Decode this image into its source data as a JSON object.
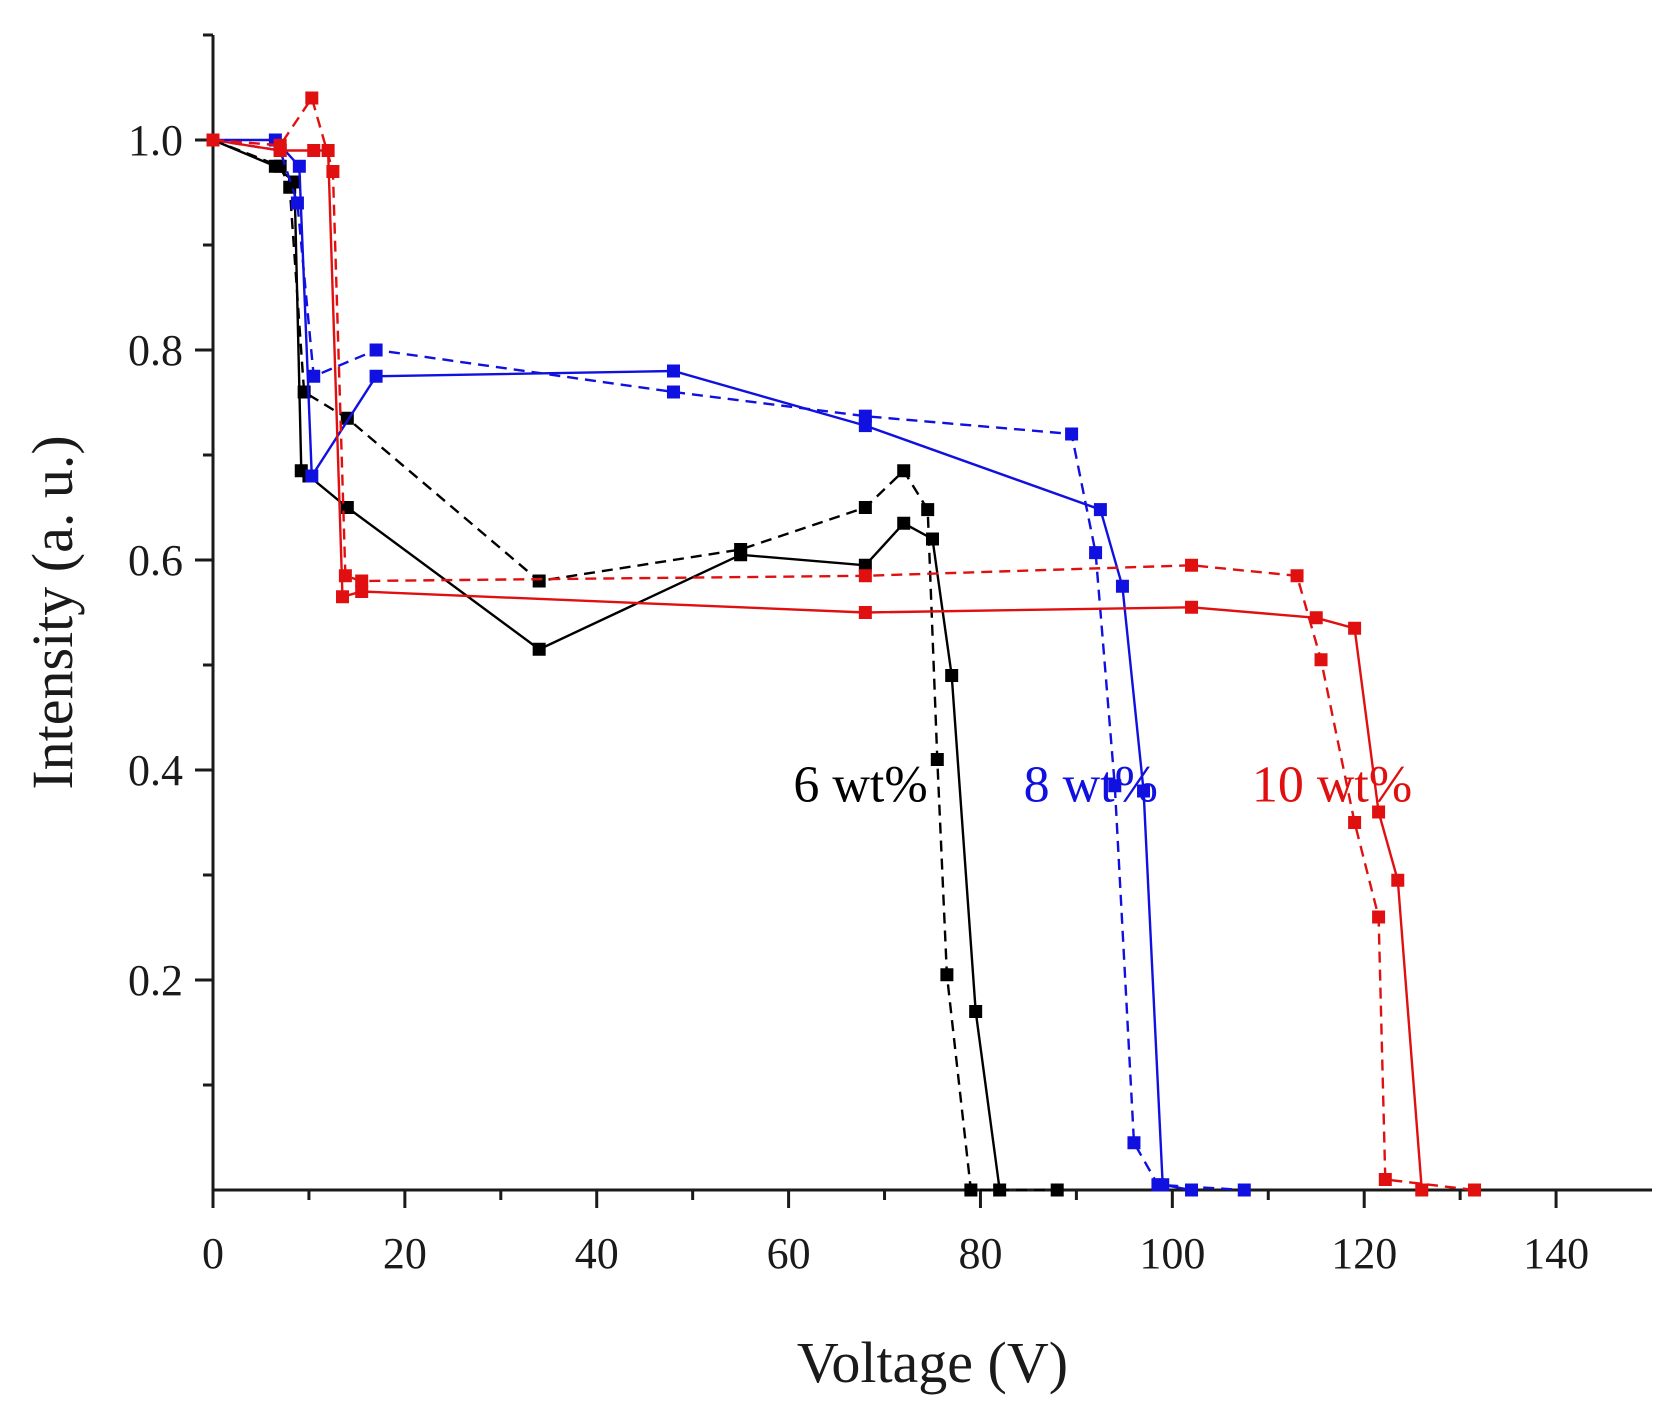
{
  "chart_data": {
    "type": "line",
    "title": "",
    "xlabel": "Voltage (V)",
    "ylabel": "Intensity (a. u.)",
    "xlim": [
      0,
      150
    ],
    "ylim": [
      0,
      1.1
    ],
    "xticks": [
      0,
      20,
      40,
      60,
      80,
      100,
      120,
      140
    ],
    "xtick_labels": [
      "0",
      "20",
      "40",
      "60",
      "80",
      "100",
      "120",
      "140"
    ],
    "yticks": [
      0.2,
      0.4,
      0.6,
      0.8,
      1.0
    ],
    "ytick_labels": [
      "0.2",
      "0.4",
      "0.6",
      "0.8",
      "1.0"
    ],
    "grid": false,
    "legend": "inline labels",
    "series": [
      {
        "name": "6 wt% (solid)",
        "color": "#000000",
        "dash": "solid",
        "x": [
          0,
          6.5,
          8.5,
          9.2,
          10,
          14,
          34,
          55,
          68,
          72,
          75,
          77,
          79.5,
          82
        ],
        "y": [
          1.0,
          0.975,
          0.96,
          0.685,
          0.68,
          0.65,
          0.515,
          0.605,
          0.595,
          0.635,
          0.62,
          0.49,
          0.17,
          0.0
        ]
      },
      {
        "name": "6 wt% (dashed)",
        "color": "#000000",
        "dash": "dashed",
        "x": [
          0,
          7,
          8,
          9.5,
          14,
          34,
          55,
          68,
          72,
          74.5,
          75.5,
          76.5,
          79,
          88
        ],
        "y": [
          1.0,
          0.975,
          0.955,
          0.76,
          0.735,
          0.58,
          0.61,
          0.65,
          0.685,
          0.648,
          0.41,
          0.205,
          0.0,
          0.0
        ]
      },
      {
        "name": "8 wt% (solid)",
        "color": "#1010e0",
        "dash": "solid",
        "x": [
          0,
          6.5,
          9,
          10.3,
          17,
          48,
          68,
          92.5,
          94.8,
          97,
          99,
          102
        ],
        "y": [
          1.0,
          1.0,
          0.975,
          0.68,
          0.775,
          0.78,
          0.728,
          0.648,
          0.575,
          0.38,
          0.005,
          0.0
        ]
      },
      {
        "name": "8 wt% (dashed)",
        "color": "#1010e0",
        "dash": "dashed",
        "x": [
          0,
          7,
          8.8,
          10.5,
          17,
          48,
          68,
          89.5,
          92,
          94,
          96,
          98.5,
          107.5
        ],
        "y": [
          1.0,
          0.99,
          0.94,
          0.775,
          0.8,
          0.76,
          0.737,
          0.72,
          0.607,
          0.385,
          0.045,
          0.005,
          0.0
        ]
      },
      {
        "name": "10 wt% (solid)",
        "color": "#e01010",
        "dash": "solid",
        "x": [
          0,
          7,
          10.5,
          12,
          13.5,
          15.5,
          68,
          102,
          115,
          119,
          121.5,
          123.5,
          126
        ],
        "y": [
          1.0,
          0.99,
          0.99,
          0.99,
          0.565,
          0.57,
          0.55,
          0.555,
          0.545,
          0.535,
          0.36,
          0.295,
          0.0
        ]
      },
      {
        "name": "10 wt% (dashed)",
        "color": "#e01010",
        "dash": "dashed",
        "x": [
          0,
          7,
          10.3,
          12.5,
          13.8,
          15.5,
          68,
          102,
          113,
          115.5,
          119,
          121.5,
          122.2,
          131.5
        ],
        "y": [
          1.0,
          0.995,
          1.04,
          0.97,
          0.585,
          0.58,
          0.585,
          0.595,
          0.585,
          0.505,
          0.35,
          0.26,
          0.01,
          0.0
        ]
      }
    ],
    "annotations": [
      {
        "text": "6 wt%",
        "color": "#000000",
        "x": 74.5,
        "y": 0.37
      },
      {
        "text": "8 wt%",
        "color": "#1010e0",
        "x": 98.5,
        "y": 0.37
      },
      {
        "text": "10 wt%",
        "color": "#e01010",
        "x": 125,
        "y": 0.37
      }
    ]
  }
}
